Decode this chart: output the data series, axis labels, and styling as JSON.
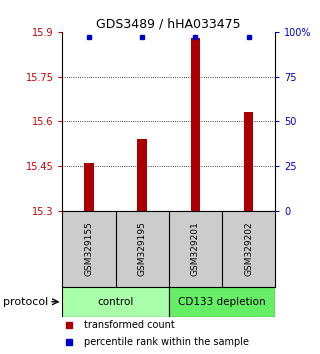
{
  "title": "GDS3489 / hHA033475",
  "samples": [
    "GSM329155",
    "GSM329195",
    "GSM329201",
    "GSM329202"
  ],
  "bar_values": [
    15.46,
    15.54,
    15.88,
    15.63
  ],
  "percentile_values": [
    97,
    97,
    97,
    97
  ],
  "bar_color": "#aa0000",
  "percentile_color": "#0000cc",
  "ylim_left": [
    15.3,
    15.9
  ],
  "ylim_right": [
    0,
    100
  ],
  "yticks_left": [
    15.3,
    15.45,
    15.6,
    15.75,
    15.9
  ],
  "ytick_labels_left": [
    "15.3",
    "15.45",
    "15.6",
    "15.75",
    "15.9"
  ],
  "yticks_right": [
    0,
    25,
    50,
    75,
    100
  ],
  "ytick_labels_right": [
    "0",
    "25",
    "50",
    "75",
    "100%"
  ],
  "groups": [
    {
      "label": "control",
      "samples": [
        0,
        1
      ],
      "color": "#aaffaa"
    },
    {
      "label": "CD133 depletion",
      "samples": [
        2,
        3
      ],
      "color": "#66ee66"
    }
  ],
  "protocol_label": "protocol",
  "legend_items": [
    {
      "label": "transformed count",
      "color": "#aa0000"
    },
    {
      "label": "percentile rank within the sample",
      "color": "#0000cc"
    }
  ],
  "bg_color": "#ffffff",
  "bar_width": 0.18,
  "sample_box_color": "#cccccc",
  "grid_dotted_color": "#555555"
}
